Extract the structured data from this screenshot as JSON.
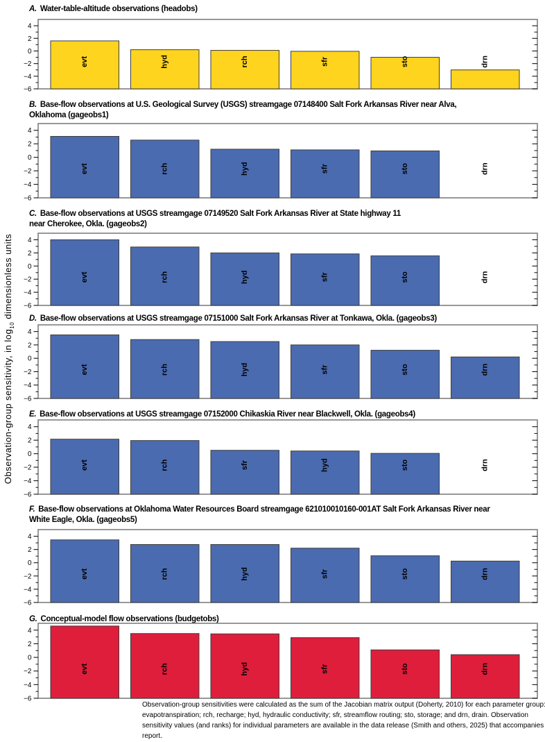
{
  "figure": {
    "y_axis_label": {
      "pre": "Observation-group sensitivity, in log",
      "sub": "10",
      "post": " dimensionless units"
    },
    "y_tick_values": [
      4,
      2,
      0,
      -2,
      -4,
      -6
    ],
    "footnote": "Observation-group sensitivities were calculated as the sum of the Jacobian matrix output (Doherty, 2010) for each parameter group: evt, evapotranspiration; rch, recharge; hyd, hydraulic conductivity; sfr, streamflow routing; sto, storage; and drn, drain. Observation sensitivity values (and ranks) for individual parameters are available in the data release (Smith and others, 2025) that accompanies this report."
  },
  "chart_data": [
    {
      "type": "bar",
      "panel": "A",
      "letter_label": "A.",
      "title_lines": [
        "Water-table-altitude observations (headobs)"
      ],
      "categories": [
        "evt",
        "hyd",
        "rch",
        "sfr",
        "sto",
        "drn"
      ],
      "values": [
        1.6,
        0.2,
        0.1,
        -0.05,
        -1.0,
        -3.0
      ],
      "bar_color": "#FFD41E",
      "ylabel": "Observation-group sensitivity, in log10 dimensionless units",
      "ylim": [
        -6,
        5
      ],
      "bar_base": -6,
      "grid": false,
      "legend": "none"
    },
    {
      "type": "bar",
      "panel": "B",
      "letter_label": "B.",
      "title_lines": [
        "Base-flow observations at U.S. Geological Survey (USGS) streamgage 07148400 Salt Fork Arkansas River near Alva,",
        "Oklahoma (gageobs1)"
      ],
      "categories": [
        "evt",
        "rch",
        "hyd",
        "sfr",
        "sto",
        "drn"
      ],
      "values": [
        3.1,
        2.55,
        1.2,
        1.1,
        0.95,
        null
      ],
      "bar_color": "#4B6BB0",
      "ylabel": "Observation-group sensitivity, in log10 dimensionless units",
      "ylim": [
        -6,
        5
      ],
      "bar_base": -6,
      "grid": false,
      "legend": "none"
    },
    {
      "type": "bar",
      "panel": "C",
      "letter_label": "C.",
      "title_lines": [
        "Base-flow observations at USGS streamgage 07149520 Salt Fork Arkansas River at State highway 11",
        "near Cherokee, Okla. (gageobs2)"
      ],
      "categories": [
        "evt",
        "rch",
        "hyd",
        "sfr",
        "sto",
        "drn"
      ],
      "values": [
        4.0,
        2.9,
        2.0,
        1.85,
        1.55,
        null
      ],
      "bar_color": "#4B6BB0",
      "ylabel": "Observation-group sensitivity, in log10 dimensionless units",
      "ylim": [
        -6,
        5
      ],
      "bar_base": -6,
      "grid": false,
      "legend": "none"
    },
    {
      "type": "bar",
      "panel": "D",
      "letter_label": "D.",
      "title_lines": [
        "Base-flow observations at USGS streamgage 07151000 Salt Fork Arkansas River at Tonkawa, Okla. (gageobs3)"
      ],
      "categories": [
        "evt",
        "rch",
        "hyd",
        "sfr",
        "sto",
        "drn"
      ],
      "values": [
        3.5,
        2.8,
        2.5,
        2.0,
        1.2,
        0.2
      ],
      "bar_color": "#4B6BB0",
      "ylabel": "Observation-group sensitivity, in log10 dimensionless units",
      "ylim": [
        -6,
        5
      ],
      "bar_base": -6,
      "grid": false,
      "legend": "none"
    },
    {
      "type": "bar",
      "panel": "E",
      "letter_label": "E.",
      "title_lines": [
        "Base-flow observations at USGS streamgage 07152000 Chikaskia River near Blackwell, Okla. (gageobs4)"
      ],
      "categories": [
        "evt",
        "rch",
        "sfr",
        "hyd",
        "sto",
        "drn"
      ],
      "values": [
        2.15,
        1.95,
        0.5,
        0.4,
        0.05,
        null
      ],
      "bar_color": "#4B6BB0",
      "ylabel": "Observation-group sensitivity, in log10 dimensionless units",
      "ylim": [
        -6,
        5
      ],
      "bar_base": -6,
      "grid": false,
      "legend": "none"
    },
    {
      "type": "bar",
      "panel": "F",
      "letter_label": "F.",
      "title_lines": [
        "Base-flow observations at Oklahoma Water Resources Board streamgage 621010010160-001AT Salt Fork Arkansas River near",
        "White Eagle, Okla. (gageobs5)"
      ],
      "categories": [
        "evt",
        "rch",
        "hyd",
        "sfr",
        "sto",
        "drn"
      ],
      "values": [
        3.45,
        2.75,
        2.75,
        2.2,
        1.05,
        0.25
      ],
      "bar_color": "#4B6BB0",
      "ylabel": "Observation-group sensitivity, in log10 dimensionless units",
      "ylim": [
        -6,
        5
      ],
      "bar_base": -6,
      "grid": false,
      "legend": "none"
    },
    {
      "type": "bar",
      "panel": "G",
      "letter_label": "G.",
      "title_lines": [
        "Conceptual-model flow observations (budgetobs)"
      ],
      "categories": [
        "evt",
        "rch",
        "hyd",
        "sfr",
        "sto",
        "drn"
      ],
      "values": [
        4.6,
        3.5,
        3.45,
        2.9,
        1.1,
        0.4
      ],
      "bar_color": "#DF1E3C",
      "ylabel": "Observation-group sensitivity, in log10 dimensionless units",
      "ylim": [
        -6,
        5
      ],
      "bar_base": -6,
      "grid": false,
      "legend": "none"
    }
  ]
}
